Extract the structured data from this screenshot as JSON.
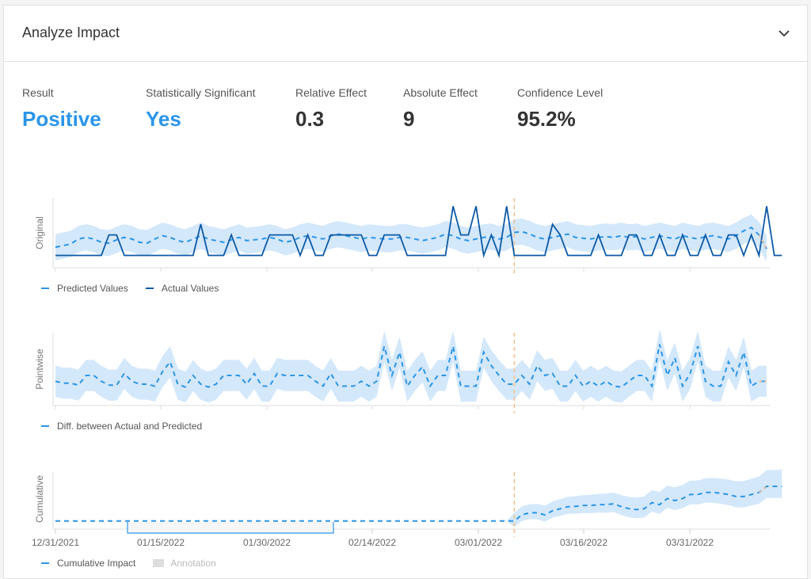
{
  "header": {
    "title": "Analyze Impact"
  },
  "metrics": [
    {
      "label": "Result",
      "value": "Positive",
      "color": "#2b95e9"
    },
    {
      "label": "Statistically Significant",
      "value": "Yes",
      "color": "#2b95e9"
    },
    {
      "label": "Relative Effect",
      "value": "0.3",
      "color": "#333333"
    },
    {
      "label": "Absolute Effect",
      "value": "9",
      "color": "#333333"
    },
    {
      "label": "Confidence Level",
      "value": "95.2%",
      "color": "#333333"
    }
  ],
  "colors": {
    "predicted": "#2b95e9",
    "actual": "#0d5aa7",
    "band": "#cfe5fb",
    "intervention": "#f5c08a"
  },
  "legends": {
    "original": [
      "Predicted Values",
      "Actual Values"
    ],
    "pointwise": [
      "Diff. between Actual and Predicted"
    ],
    "cumulative": [
      "Cumulative Impact",
      "Annotation"
    ]
  },
  "chart_data": [
    {
      "type": "line",
      "ylabel": "Original",
      "intervention_day": 60,
      "series": [
        {
          "name": "Predicted Values",
          "style": "dashed",
          "values": [
            1.0,
            1.2,
            1.4,
            2.0,
            2.2,
            2.0,
            1.6,
            1.5,
            1.9,
            2.2,
            2.0,
            1.6,
            1.5,
            2.0,
            2.4,
            2.2,
            1.8,
            1.6,
            2.0,
            2.4,
            2.0,
            1.8,
            1.6,
            1.9,
            2.2,
            1.8,
            1.9,
            2.0,
            2.2,
            2.0,
            1.6,
            1.8,
            2.2,
            2.4,
            2.2,
            2.0,
            2.4,
            2.6,
            2.4,
            2.2,
            2.0,
            2.2,
            2.1,
            2.0,
            2.0,
            2.2,
            2.2,
            2.0,
            1.8,
            2.0,
            2.2,
            2.6,
            2.4,
            2.0,
            1.8,
            2.0,
            2.2,
            2.3,
            2.0,
            2.2,
            2.8,
            2.9,
            2.6,
            2.2,
            2.0,
            2.2,
            2.4,
            2.6,
            2.2,
            2.1,
            2.0,
            2.2,
            2.3,
            2.2,
            2.4,
            2.2,
            2.3,
            2.0,
            2.2,
            2.4,
            2.2,
            2.0,
            2.4,
            2.2,
            2.0,
            2.3,
            2.4,
            2.2,
            2.0,
            2.4,
            3.0,
            3.4,
            2.5,
            0.8
          ]
        },
        {
          "name": "Actual Values",
          "style": "solid",
          "values": [
            0,
            0,
            0,
            0,
            0,
            0,
            0,
            2.5,
            2.5,
            0,
            0,
            0,
            0,
            0,
            0,
            0,
            0,
            0,
            0,
            3.8,
            0,
            0,
            0,
            2.5,
            0,
            0,
            0,
            0,
            2.5,
            2.5,
            2.5,
            2.5,
            0,
            2.5,
            0,
            0,
            2.5,
            2.5,
            2.5,
            2.5,
            2.5,
            0,
            0,
            2.5,
            2.5,
            2.5,
            0,
            0,
            0,
            0,
            0,
            0,
            6.0,
            2.5,
            2.5,
            6.0,
            0,
            2.5,
            0,
            6.0,
            0,
            0,
            0,
            0,
            0,
            3.8,
            2.5,
            0,
            0,
            0,
            0,
            2.5,
            0,
            0,
            0,
            2.5,
            2.5,
            0,
            0,
            2.5,
            0,
            0,
            2.5,
            0,
            0,
            2.5,
            0,
            0,
            2.5,
            2.5,
            0,
            2.5,
            0,
            6.0,
            0,
            0
          ]
        }
      ]
    },
    {
      "type": "line",
      "ylabel": "Pointwise",
      "series": [
        {
          "name": "Diff. between Actual and Predicted",
          "style": "dashed",
          "values": [
            0.0,
            -0.2,
            -0.2,
            -0.4,
            0.6,
            0.6,
            0.0,
            -0.4,
            -0.4,
            0.8,
            0.0,
            -0.3,
            -0.3,
            -0.5,
            1.0,
            2.0,
            -0.3,
            -0.6,
            0.6,
            -0.3,
            -0.6,
            -0.3,
            0.6,
            0.6,
            0.6,
            -0.3,
            0.8,
            -0.5,
            -0.5,
            0.8,
            0.6,
            0.6,
            0.6,
            0.6,
            0.0,
            -0.5,
            0.8,
            -0.5,
            -0.5,
            -0.5,
            0.0,
            -0.5,
            0.0,
            3.6,
            0.6,
            3.0,
            -0.5,
            0.6,
            1.5,
            -0.5,
            0.6,
            0.6,
            3.6,
            -0.5,
            -0.5,
            -0.5,
            3.0,
            1.6,
            0.6,
            -0.3,
            -0.3,
            0.6,
            -0.3,
            1.6,
            0.6,
            0.8,
            -0.5,
            -0.5,
            0.6,
            -0.5,
            0.0,
            -0.5,
            0.0,
            -0.5,
            -0.6,
            0.0,
            0.6,
            0.6,
            -0.5,
            3.8,
            0.6,
            2.4,
            -0.5,
            0.8,
            3.6,
            0.0,
            -0.5,
            -0.5,
            2.0,
            0.6,
            3.0,
            -0.5,
            0.0,
            0.0
          ]
        }
      ]
    },
    {
      "type": "line",
      "ylabel": "Cumulative",
      "x_ticks": [
        "12/31/2021",
        "01/15/2022",
        "01/30/2022",
        "02/14/2022",
        "03/01/2022",
        "03/16/2022",
        "03/31/2022"
      ],
      "annotation_range": [
        "01/07/2022",
        "02/07/2022"
      ],
      "series": [
        {
          "name": "Cumulative Impact",
          "style": "dashed",
          "values": [
            0,
            0,
            0,
            0,
            0,
            0,
            0,
            0,
            0,
            0,
            0,
            0,
            0,
            0,
            0,
            0,
            0,
            0,
            0,
            0,
            0,
            0,
            0,
            0,
            0,
            0,
            0,
            0,
            0,
            0,
            0,
            0,
            0,
            0,
            0,
            0,
            0,
            0,
            0,
            0,
            0,
            0,
            0,
            0,
            0,
            0,
            0,
            0,
            0,
            0,
            0,
            0,
            0,
            0,
            0,
            0,
            0,
            0,
            0,
            0,
            0,
            1.5,
            2.0,
            2.0,
            1.5,
            2.5,
            3.0,
            3.5,
            3.6,
            3.8,
            3.8,
            4.0,
            4.0,
            4.2,
            3.5,
            3.0,
            2.8,
            3.0,
            4.5,
            4.0,
            5.5,
            5.0,
            5.5,
            6.5,
            6.5,
            7.0,
            7.0,
            6.8,
            6.5,
            6.0,
            6.0,
            6.5,
            7.0,
            8.5,
            8.5,
            8.5
          ]
        }
      ]
    }
  ]
}
